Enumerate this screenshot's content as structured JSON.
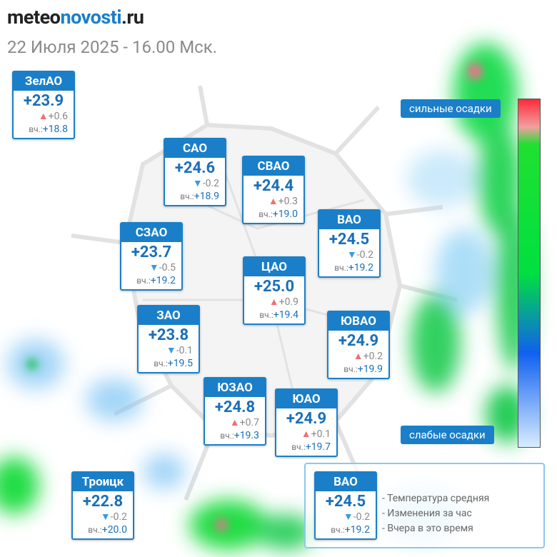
{
  "header": {
    "logo": [
      "meteo",
      "novosti",
      ".ru"
    ],
    "date": "22 Июля 2025 - 16.00 Мск."
  },
  "scale": {
    "high": "сильные осадки",
    "low": "слабые осадки"
  },
  "yesterday_label": "вч.:",
  "districts": [
    {
      "name": "ЗелАО",
      "temp": "+23.9",
      "change": "+0.6",
      "yesterday": "+18.8"
    },
    {
      "name": "САО",
      "temp": "+24.6",
      "change": "-0.2",
      "yesterday": "+18.9"
    },
    {
      "name": "СВАО",
      "temp": "+24.4",
      "change": "+0.3",
      "yesterday": "+19.0"
    },
    {
      "name": "ВАО",
      "temp": "+24.5",
      "change": "-0.2",
      "yesterday": "+19.2"
    },
    {
      "name": "СЗАО",
      "temp": "+23.7",
      "change": "-0.5",
      "yesterday": "+19.2"
    },
    {
      "name": "ЦАО",
      "temp": "+25.0",
      "change": "+0.9",
      "yesterday": "+19.4"
    },
    {
      "name": "ЗАО",
      "temp": "+23.8",
      "change": "-0.1",
      "yesterday": "+19.5"
    },
    {
      "name": "ЮВАО",
      "temp": "+24.9",
      "change": "+0.2",
      "yesterday": "+19.9"
    },
    {
      "name": "ЮЗАО",
      "temp": "+24.8",
      "change": "+0.7",
      "yesterday": "+19.3"
    },
    {
      "name": "ЮАО",
      "temp": "+24.9",
      "change": "+0.1",
      "yesterday": "+19.7"
    },
    {
      "name": "Троицк",
      "temp": "+22.8",
      "change": "-0.2",
      "yesterday": "+20.0"
    }
  ],
  "legend": {
    "sample": {
      "name": "ВАО",
      "temp": "+24.5",
      "change": "-0.2",
      "yesterday": "+19.2"
    },
    "lines": [
      "- Температура средняя",
      "- Изменения за час",
      "- Вчера в это время"
    ]
  }
}
